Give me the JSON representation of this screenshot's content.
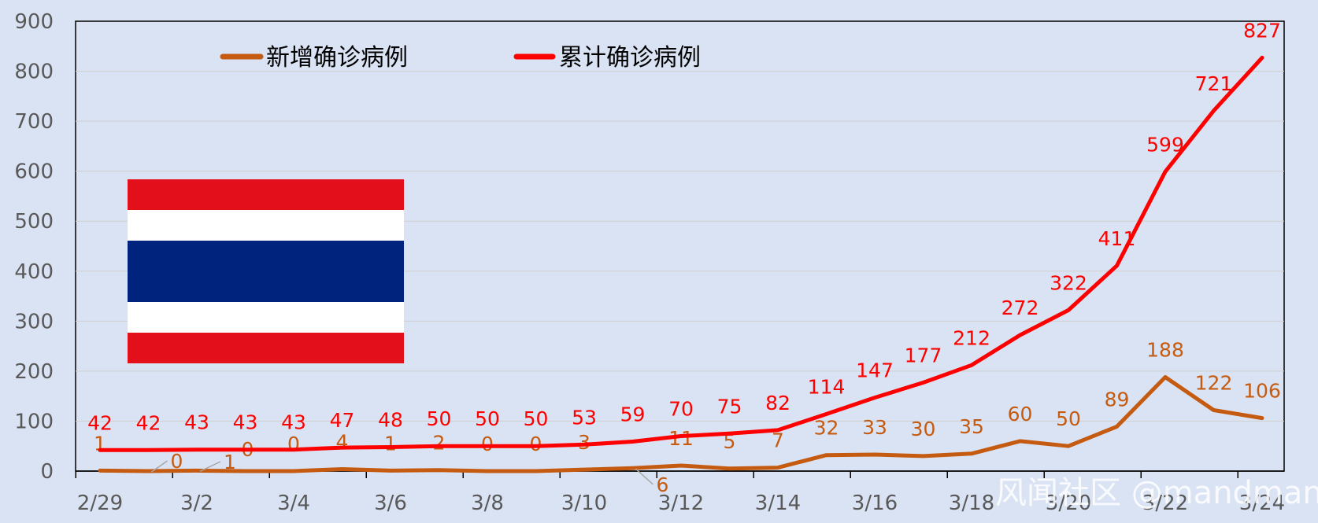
{
  "chart_data": {
    "type": "line",
    "x": [
      "2/29",
      "3/1",
      "3/2",
      "3/3",
      "3/4",
      "3/5",
      "3/6",
      "3/7",
      "3/8",
      "3/9",
      "3/10",
      "3/11",
      "3/12",
      "3/13",
      "3/14",
      "3/15",
      "3/16",
      "3/17",
      "3/18",
      "3/19",
      "3/20",
      "3/21",
      "3/22",
      "3/23",
      "3/24"
    ],
    "x_tick_labels": [
      "2/29",
      "3/2",
      "3/4",
      "3/6",
      "3/8",
      "3/10",
      "3/12",
      "3/14",
      "3/16",
      "3/18",
      "3/20",
      "3/22",
      "3/24"
    ],
    "series": [
      {
        "name": "新增确诊病例",
        "color": "#c55a11",
        "values": [
          1,
          0,
          1,
          0,
          0,
          4,
          1,
          2,
          0,
          0,
          3,
          6,
          11,
          5,
          7,
          32,
          33,
          30,
          35,
          60,
          50,
          89,
          188,
          122,
          106
        ]
      },
      {
        "name": "累计确诊病例",
        "color": "#ff0000",
        "values": [
          42,
          42,
          43,
          43,
          43,
          47,
          48,
          50,
          50,
          50,
          53,
          59,
          70,
          75,
          82,
          114,
          147,
          177,
          212,
          272,
          322,
          411,
          599,
          721,
          827
        ]
      }
    ],
    "ylim": [
      0,
      900
    ],
    "y_ticks": [
      0,
      100,
      200,
      300,
      400,
      500,
      600,
      700,
      800,
      900
    ],
    "grid": true,
    "legend": "top",
    "flag": {
      "name": "flag-of-thailand",
      "colors": [
        "#e30f1a",
        "#ffffff",
        "#00247d"
      ]
    },
    "watermark": "风闻社区 @mandman",
    "background": "#dae3f3"
  }
}
